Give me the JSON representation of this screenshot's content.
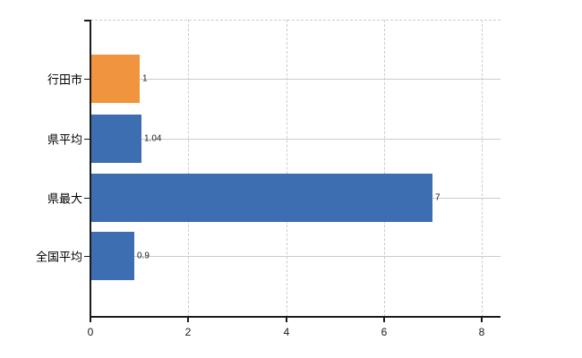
{
  "chart_data": {
    "type": "bar",
    "orientation": "horizontal",
    "title": "",
    "xlabel": "",
    "ylabel": "",
    "categories": [
      "行田市",
      "県平均",
      "県最大",
      "全国平均"
    ],
    "values": [
      1,
      1.04,
      7,
      0.9
    ],
    "value_labels": [
      "1",
      "1.04",
      "7",
      "0.9"
    ],
    "bar_colors": [
      "#f0943d",
      "#3c6eb1",
      "#3c6eb1",
      "#3c6eb1"
    ],
    "xlim": [
      0,
      8.4
    ],
    "x_ticks": [
      0,
      2,
      4,
      6,
      8
    ],
    "x_tick_labels": [
      "0",
      "2",
      "4",
      "6",
      "8"
    ],
    "grid": {
      "vertical": "dashed light gray at each x tick",
      "horizontal": "solid light gray line at each category center",
      "top_border": "dashed light gray"
    },
    "legend": "none"
  },
  "colors": {
    "background": "#ffffff",
    "highlight_bar": "#f0943d",
    "default_bar": "#3c6eb1",
    "grid": "#cccccc",
    "axis": "#1a1a1a",
    "text": "#000000"
  }
}
